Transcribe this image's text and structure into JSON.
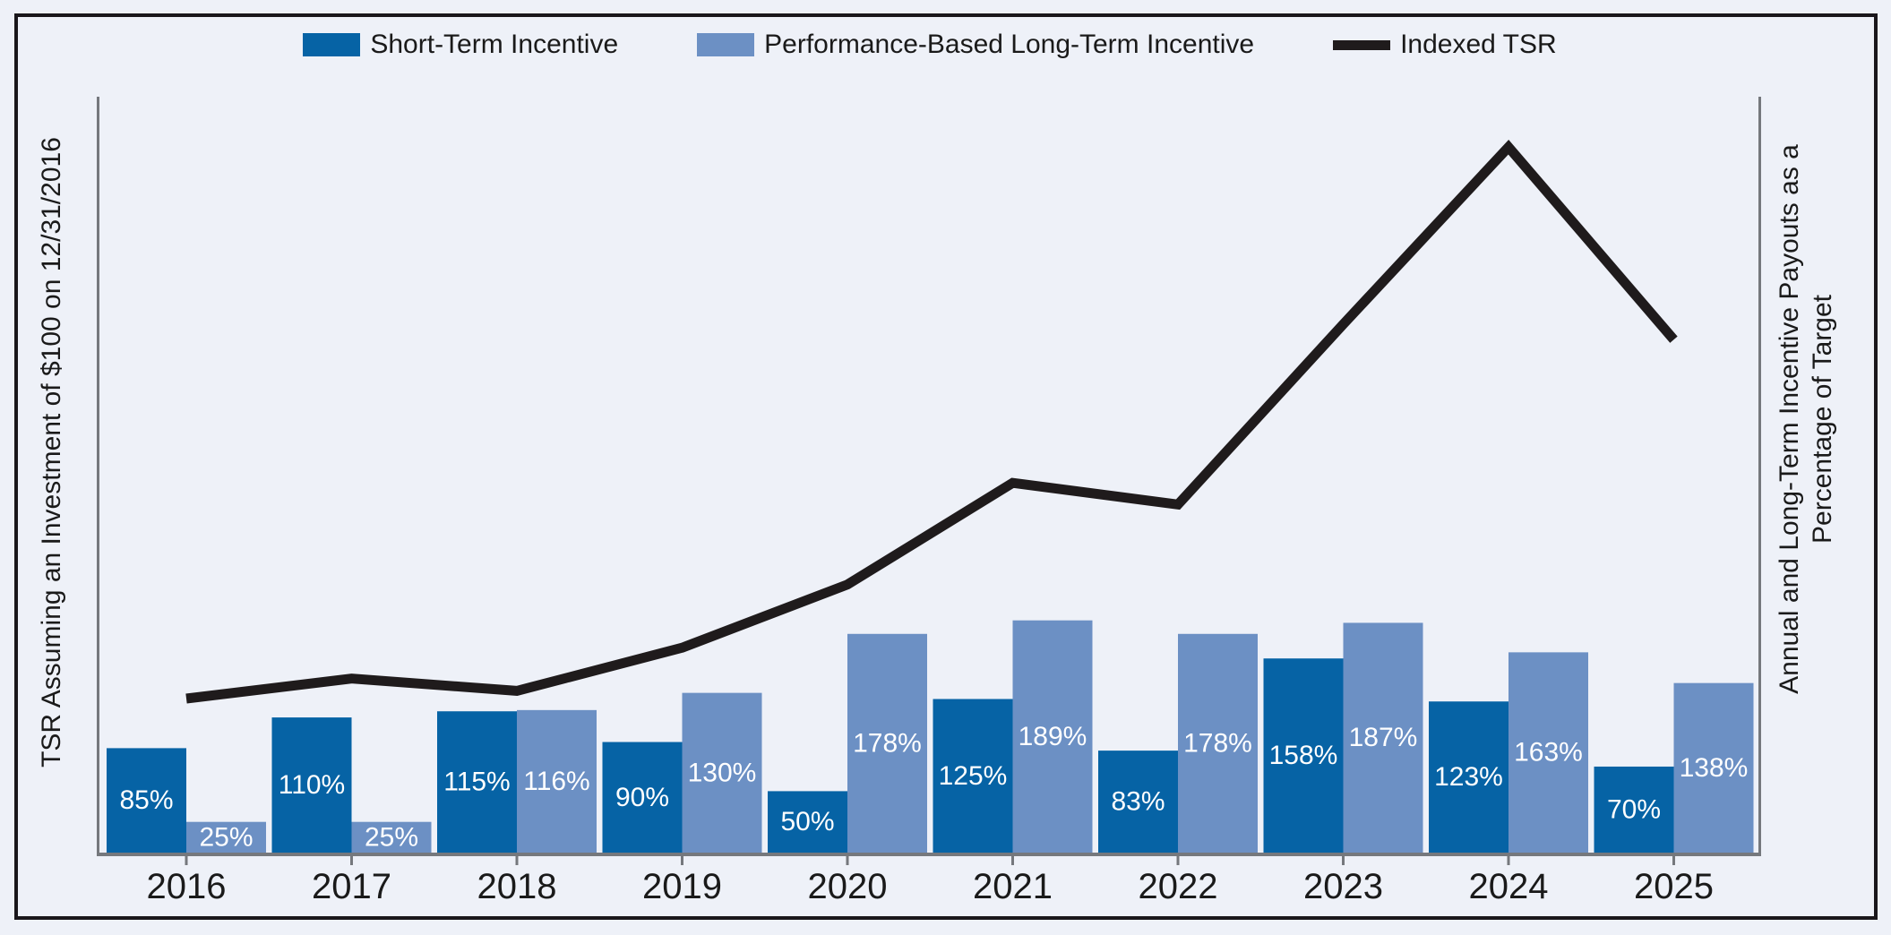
{
  "figure": {
    "background_color": "#EEF1F8",
    "border_color": "#1A171B"
  },
  "legend": {
    "items": [
      {
        "label": "Short-Term Incentive",
        "swatch_color": "#0663A5",
        "swatch_type": "bar"
      },
      {
        "label": "Performance-Based Long-Term Incentive",
        "swatch_color": "#6C90C4",
        "swatch_type": "bar"
      },
      {
        "label": "Indexed TSR",
        "swatch_color": "#1F1B1C",
        "swatch_type": "line"
      }
    ]
  },
  "axes": {
    "left_label": "TSR Assuming an Investment of $100 on 12/31/2016",
    "right_label_line1": "Annual and Long-Term Incentive Payouts as a",
    "right_label_line2": "Percentage of Target",
    "axis_color": "#75787D",
    "year_label_color": "#1A1A1A"
  },
  "chart_data": {
    "type": "bar+line",
    "categories": [
      "2016",
      "2017",
      "2018",
      "2019",
      "2020",
      "2021",
      "2022",
      "2023",
      "2024",
      "2025"
    ],
    "bar_value_suffix": "%",
    "grid": "off",
    "left_axis_ticks": "none",
    "right_axis_ticks": "none",
    "legend_position": "top-center",
    "series": [
      {
        "name": "Short-Term Incentive",
        "type": "bar",
        "color": "#0663A5",
        "values": [
          85,
          110,
          115,
          90,
          50,
          125,
          83,
          158,
          123,
          70
        ],
        "labels": [
          "85%",
          "110%",
          "115%",
          "90%",
          "50%",
          "125%",
          "83%",
          "158%",
          "123%",
          "70%"
        ],
        "label_color": "#FFFFFF"
      },
      {
        "name": "Performance-Based Long-Term Incentive",
        "type": "bar",
        "color": "#6C90C4",
        "values": [
          25,
          25,
          116,
          130,
          178,
          189,
          178,
          187,
          163,
          138
        ],
        "labels": [
          "25%",
          "25%",
          "116%",
          "130%",
          "178%",
          "189%",
          "178%",
          "187%",
          "163%",
          "138%"
        ],
        "label_color": "#FFFFFF"
      },
      {
        "name": "Indexed TSR",
        "type": "line",
        "color": "#1F1B1C",
        "values_estimated": [
          100,
          113,
          105,
          133,
          174,
          240,
          226,
          343,
          458,
          333
        ],
        "note": "left axis shows no tick values; line values estimated from plot assuming 2016 = 100"
      }
    ]
  }
}
